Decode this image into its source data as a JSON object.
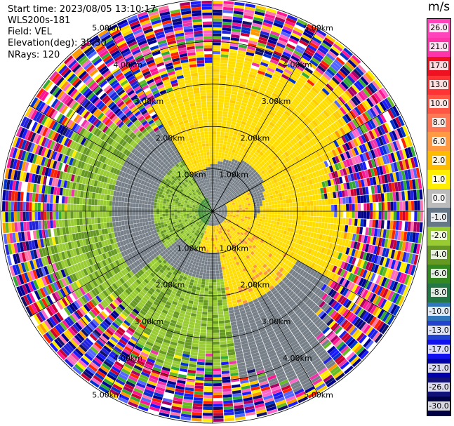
{
  "header": {
    "start_time": "Start time: 2023/08/05 13:10:17",
    "station": "WLS200s-181",
    "field": "Field: VEL",
    "elevation": "Elevation(deg): 35.30",
    "nrays": "NRays: 120"
  },
  "colorbar": {
    "unit": "m/s",
    "ticks": [
      "26.0",
      "21.0",
      "17.0",
      "13.0",
      "10.0",
      "8.0",
      "6.0",
      "2.0",
      "1.0",
      "0.0",
      "-1.0",
      "-2.0",
      "-4.0",
      "-6.0",
      "-8.0",
      "-10.0",
      "-13.0",
      "-17.0",
      "-21.0",
      "-26.0",
      "-30.0"
    ],
    "colors": [
      "#ff44bb",
      "#ff33aa",
      "#ee1122",
      "#ff3333",
      "#ff5544",
      "#ff7755",
      "#ff9944",
      "#ffbb00",
      "#ffee00",
      "#bbbbbb",
      "#667788",
      "#99cc33",
      "#669922",
      "#338822",
      "#227744",
      "#3377bb",
      "#2244cc",
      "#1111ee",
      "#0000aa",
      "#111177",
      "#000044"
    ]
  },
  "chart_data": {
    "type": "ppi",
    "field": "VEL",
    "units": "m/s",
    "nrays": 120,
    "elevation_deg": 35.3,
    "range_ring_labels": [
      "1.00km",
      "2.00km",
      "3.00km",
      "4.00km",
      "5.00km"
    ],
    "color_levels": [
      26.0,
      21.0,
      17.0,
      13.0,
      10.0,
      8.0,
      6.0,
      2.0,
      1.0,
      0.0,
      -1.0,
      -2.0,
      -4.0,
      -6.0,
      -8.0,
      -10.0,
      -13.0,
      -17.0,
      -21.0,
      -26.0,
      -30.0
    ],
    "max_range_km": 5.0,
    "spoke_azimuths_deg": [
      0,
      30,
      60,
      90,
      120,
      150,
      180,
      210,
      240,
      270,
      300,
      330
    ]
  }
}
